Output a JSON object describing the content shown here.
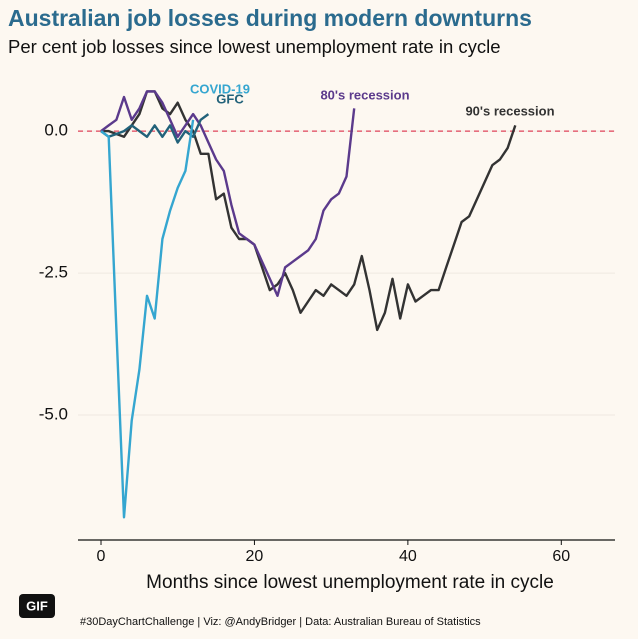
{
  "chart_data": {
    "type": "line",
    "title": "Australian job losses during modern downturns",
    "subtitle": "Per cent job losses since lowest unemployment rate in cycle",
    "x_label": "Months since lowest unemployment rate in cycle",
    "footer": "#30DayChartChallenge | Viz: @AndyBridger | Data: Australian Bureau of Statistics",
    "badge": "GIF",
    "xlim": [
      -3,
      67
    ],
    "xticks": [
      0,
      20,
      40,
      60
    ],
    "ylim": [
      -7.2,
      0.9
    ],
    "yticks": [
      {
        "value": 0,
        "label": "0.0"
      },
      {
        "value": -2.5,
        "label": "-2.5"
      },
      {
        "value": -5,
        "label": "-5.0"
      }
    ],
    "grid": true,
    "reference_line": 0,
    "reference_color": "#e0435a",
    "series": [
      {
        "name": "90's recession",
        "color": "#333333",
        "x": [
          0,
          1,
          2,
          3,
          4,
          5,
          6,
          7,
          8,
          9,
          10,
          11,
          12,
          13,
          14,
          15,
          16,
          17,
          18,
          19,
          20,
          21,
          22,
          23,
          24,
          25,
          26,
          27,
          28,
          29,
          30,
          31,
          32,
          33,
          34,
          35,
          36,
          37,
          38,
          39,
          40,
          41,
          42,
          43,
          44,
          45,
          46,
          47,
          48,
          49,
          50,
          51,
          52,
          53,
          54
        ],
        "values": [
          0,
          0,
          -0.05,
          -0.1,
          0.1,
          0.3,
          0.7,
          0.7,
          0.4,
          0.3,
          0.5,
          0.2,
          0.0,
          -0.4,
          -0.4,
          -1.2,
          -1.1,
          -1.7,
          -1.9,
          -1.9,
          -2.0,
          -2.4,
          -2.8,
          -2.7,
          -2.5,
          -2.8,
          -3.2,
          -3.0,
          -2.8,
          -2.9,
          -2.7,
          -2.8,
          -2.9,
          -2.7,
          -2.2,
          -2.8,
          -3.5,
          -3.2,
          -2.6,
          -3.3,
          -2.7,
          -3.0,
          -2.9,
          -2.8,
          -2.8,
          -2.4,
          -2.0,
          -1.6,
          -1.5,
          -1.2,
          -0.9,
          -0.6,
          -0.5,
          -0.3,
          0.1
        ]
      },
      {
        "name": "80's recession",
        "color": "#5b3a8c",
        "x": [
          0,
          1,
          2,
          3,
          4,
          5,
          6,
          7,
          8,
          9,
          10,
          11,
          12,
          13,
          14,
          15,
          16,
          17,
          18,
          19,
          20,
          21,
          22,
          23,
          24,
          25,
          26,
          27,
          28,
          29,
          30,
          31,
          32,
          33
        ],
        "values": [
          0,
          0.1,
          0.2,
          0.6,
          0.2,
          0.4,
          0.7,
          0.7,
          0.5,
          0.2,
          -0.1,
          0.1,
          0.3,
          0.1,
          -0.2,
          -0.5,
          -0.7,
          -1.3,
          -1.8,
          -1.9,
          -2.0,
          -2.3,
          -2.6,
          -2.9,
          -2.4,
          -2.3,
          -2.2,
          -2.1,
          -1.9,
          -1.4,
          -1.2,
          -1.1,
          -0.8,
          0.4
        ]
      },
      {
        "name": "GFC",
        "color": "#22627a",
        "x": [
          0,
          1,
          2,
          3,
          4,
          5,
          6,
          7,
          8,
          9,
          10,
          11,
          12,
          13,
          14
        ],
        "values": [
          0,
          -0.1,
          -0.05,
          0,
          0.1,
          0,
          -0.1,
          0.1,
          -0.1,
          0.1,
          -0.2,
          0,
          -0.1,
          0.2,
          0.3
        ]
      },
      {
        "name": "COVID-19",
        "color": "#35a6d0",
        "x": [
          0,
          1,
          2,
          3,
          4,
          5,
          6,
          7,
          8,
          9,
          10,
          11,
          12
        ],
        "values": [
          0,
          -0.1,
          -3.5,
          -6.8,
          -5.1,
          -4.2,
          -2.9,
          -3.3,
          -1.9,
          -1.4,
          -1.0,
          -0.7,
          0.2
        ]
      }
    ]
  }
}
